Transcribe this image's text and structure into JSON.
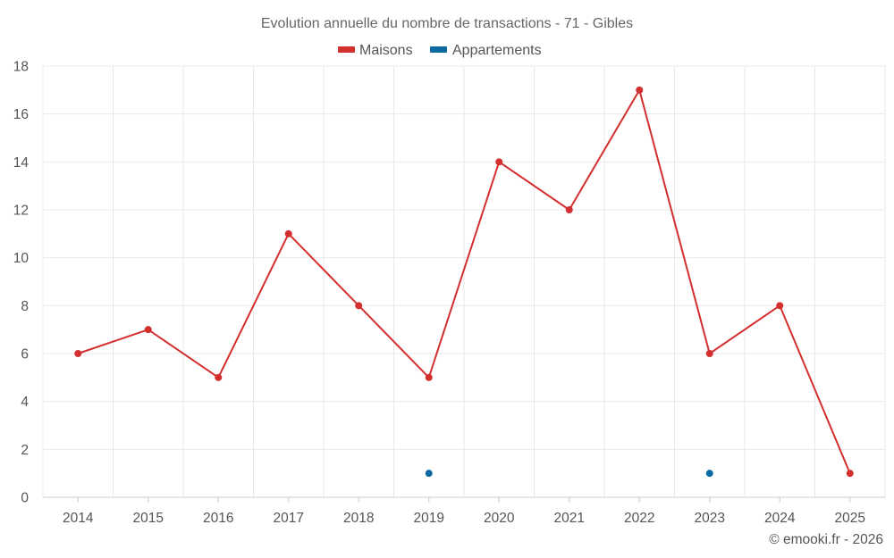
{
  "chart_data": {
    "type": "line",
    "title": "Evolution annuelle du nombre de transactions - 71 - Gibles",
    "categories": [
      "2014",
      "2015",
      "2016",
      "2017",
      "2018",
      "2019",
      "2020",
      "2021",
      "2022",
      "2023",
      "2024",
      "2025"
    ],
    "series": [
      {
        "name": "Maisons",
        "color": "#d32f2f",
        "values": [
          6,
          7,
          5,
          11,
          8,
          5,
          14,
          12,
          17,
          6,
          8,
          1
        ]
      },
      {
        "name": "Appartements",
        "color": "#0b6aa2",
        "values": [
          null,
          null,
          null,
          null,
          null,
          1,
          null,
          null,
          null,
          1,
          null,
          null
        ]
      }
    ],
    "ylim": [
      0,
      18
    ],
    "yticks": [
      0,
      2,
      4,
      6,
      8,
      10,
      12,
      14,
      16,
      18
    ],
    "xlabel": "",
    "ylabel": "",
    "grid": true,
    "legend": "top-center",
    "credit": "© emooki.fr - 2026"
  }
}
